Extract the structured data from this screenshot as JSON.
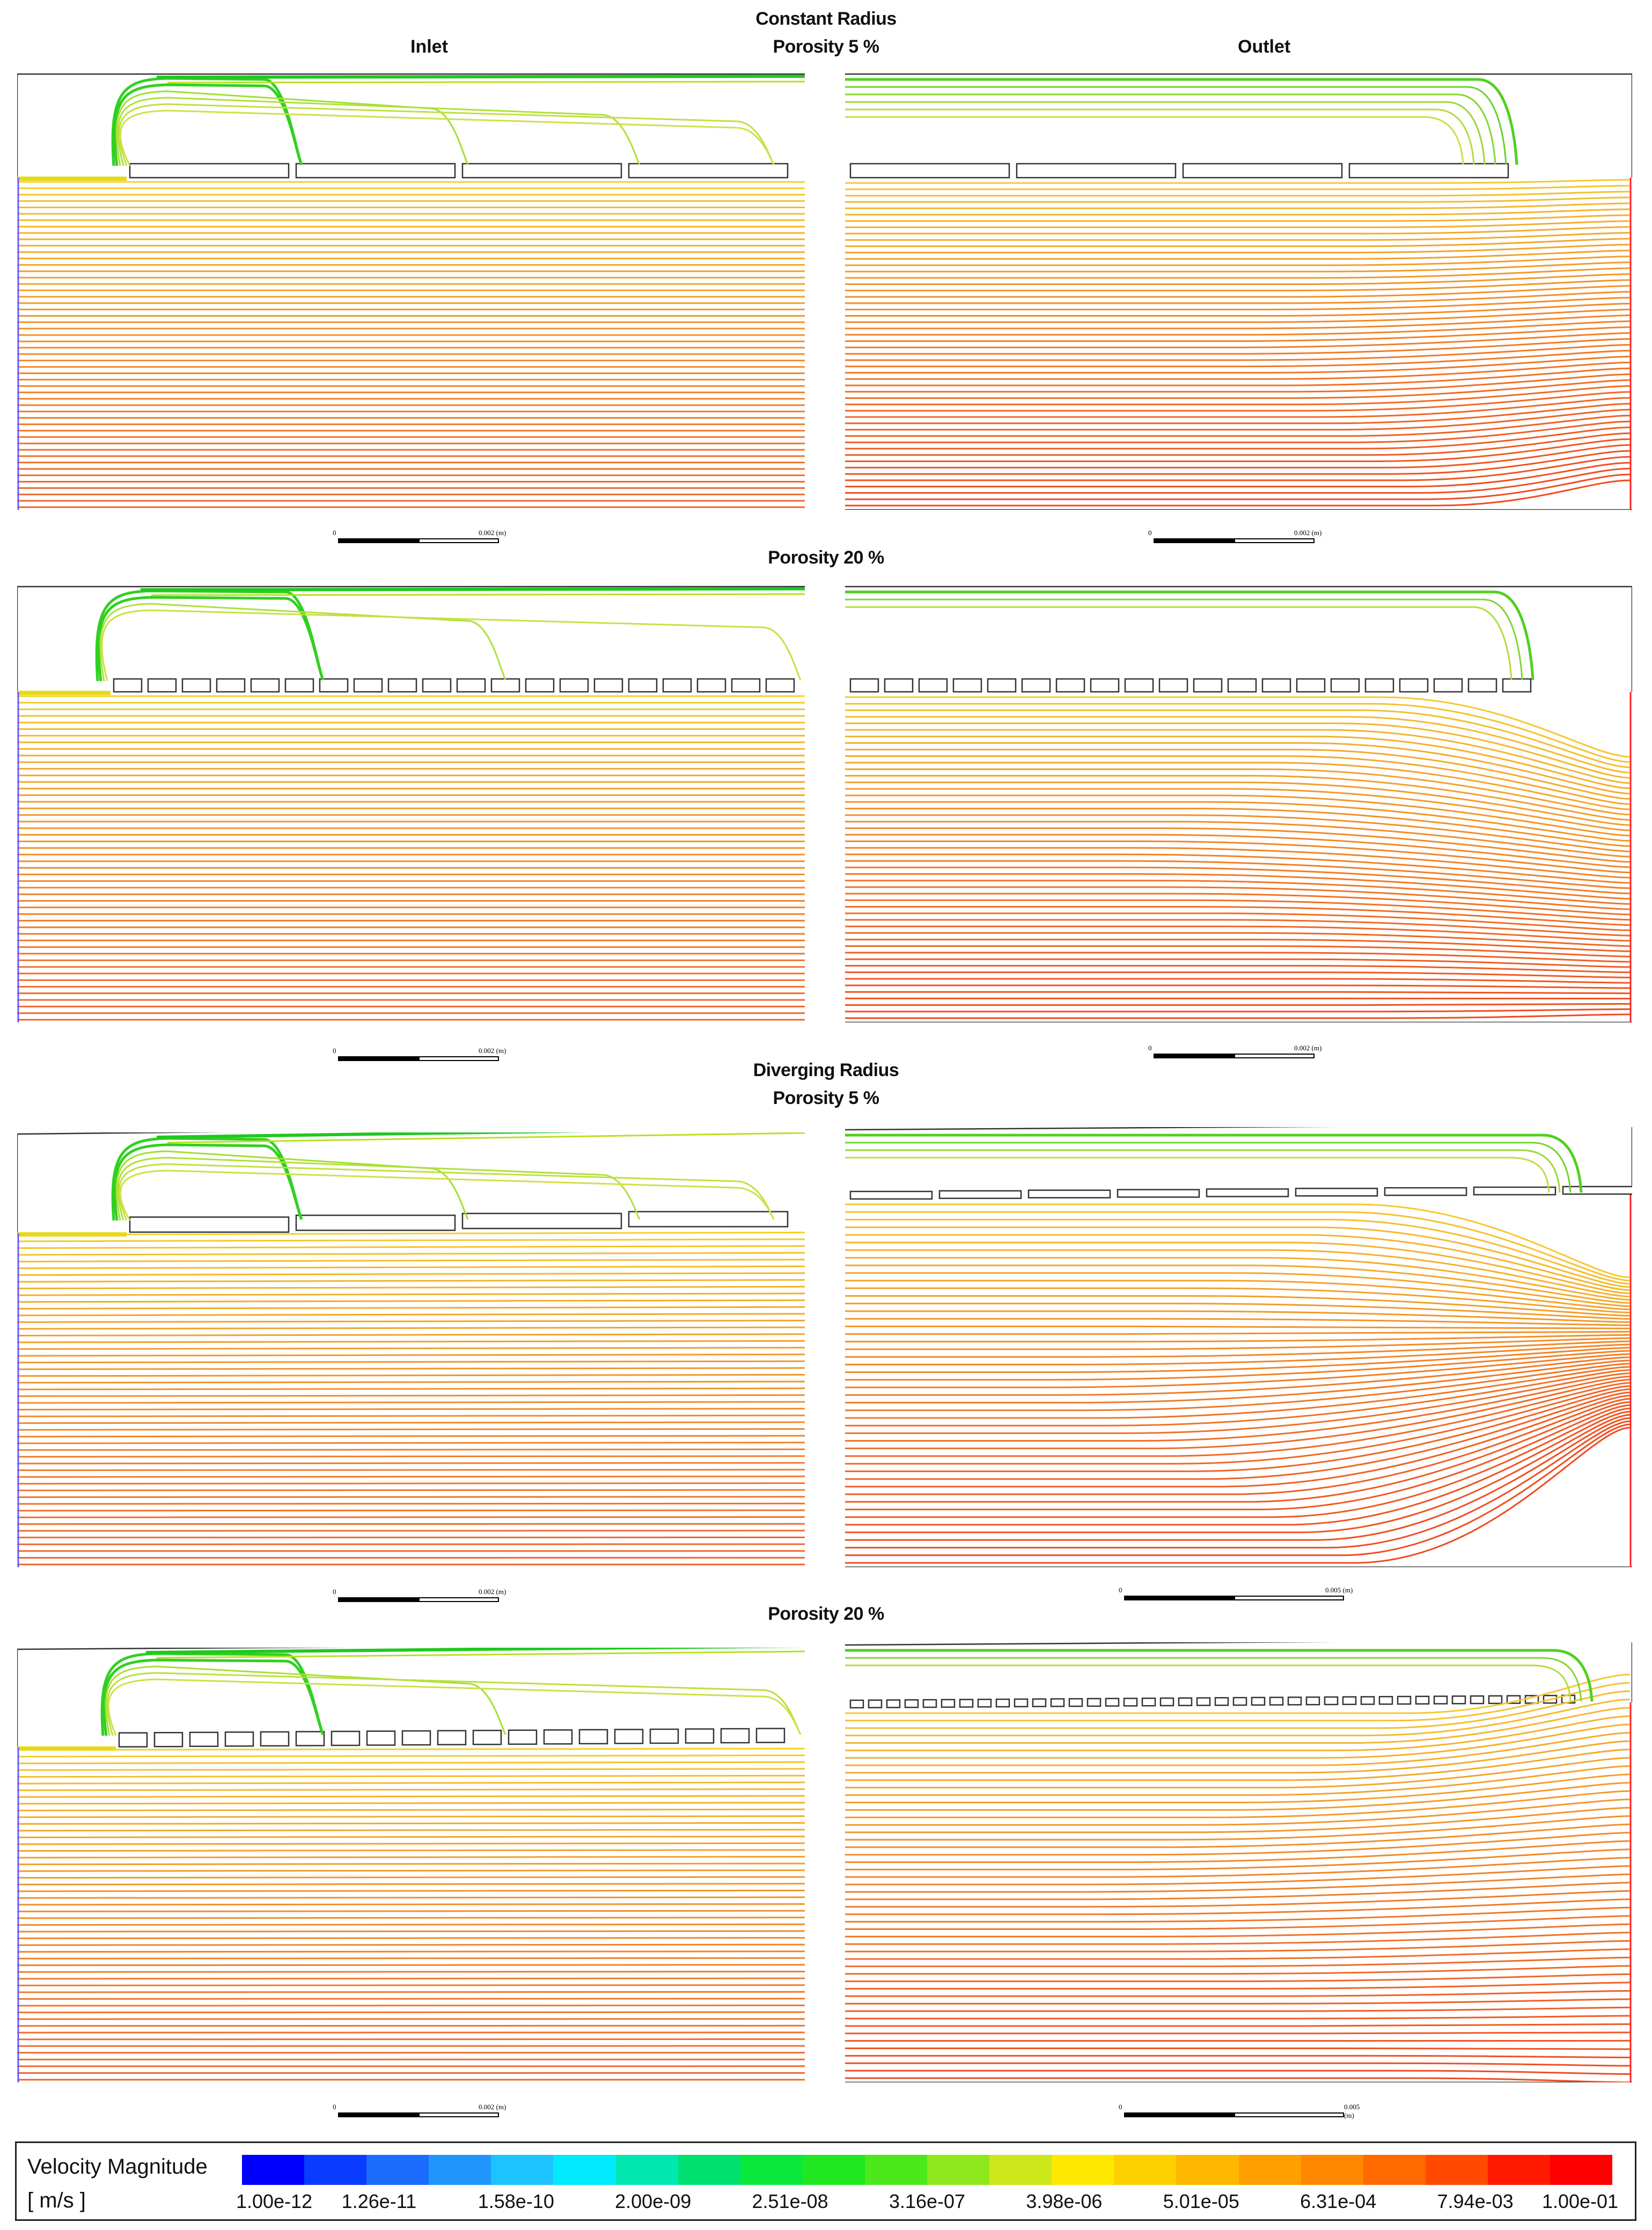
{
  "headers": {
    "constant_radius": "Constant Radius",
    "inlet": "Inlet",
    "outlet": "Outlet",
    "cr_porosity_5": "Porosity 5 %",
    "cr_porosity_20": "Porosity 20 %",
    "diverging_radius": "Diverging Radius",
    "dr_porosity_5": "Porosity 5 %",
    "dr_porosity_20": "Porosity 20 %"
  },
  "scale_bars": [
    {
      "zero": "0",
      "label": "0.002 (m)"
    },
    {
      "zero": "0",
      "label": "0.002 (m)"
    },
    {
      "zero": "0",
      "label": "0.002 (m)"
    },
    {
      "zero": "0",
      "label": "0.002 (m)"
    },
    {
      "zero": "0",
      "label": "0.002 (m)"
    },
    {
      "zero": "0",
      "label": "0.005 (m)"
    },
    {
      "zero": "0",
      "label": "0.002 (m)"
    },
    {
      "zero": "0",
      "label": "0.005 (m)"
    }
  ],
  "legend": {
    "title": "Velocity Magnitude",
    "unit": "[ m/s ]",
    "ticks": [
      "1.00e-12",
      "1.26e-11",
      "1.58e-10",
      "2.00e-09",
      "2.51e-08",
      "3.16e-07",
      "3.98e-06",
      "5.01e-05",
      "6.31e-04",
      "7.94e-03",
      "1.00e-01"
    ],
    "colors": [
      "#0000ff",
      "#0a3cff",
      "#1a6cff",
      "#2196ff",
      "#1cc3ff",
      "#00eaff",
      "#00e8b0",
      "#00e070",
      "#0ae83c",
      "#20e820",
      "#4de81c",
      "#8ee81c",
      "#cce81a",
      "#ffe800",
      "#ffd000",
      "#ffb800",
      "#ffa000",
      "#ff8800",
      "#ff6a00",
      "#ff4a00",
      "#ff1a00",
      "#ff0000"
    ]
  }
}
